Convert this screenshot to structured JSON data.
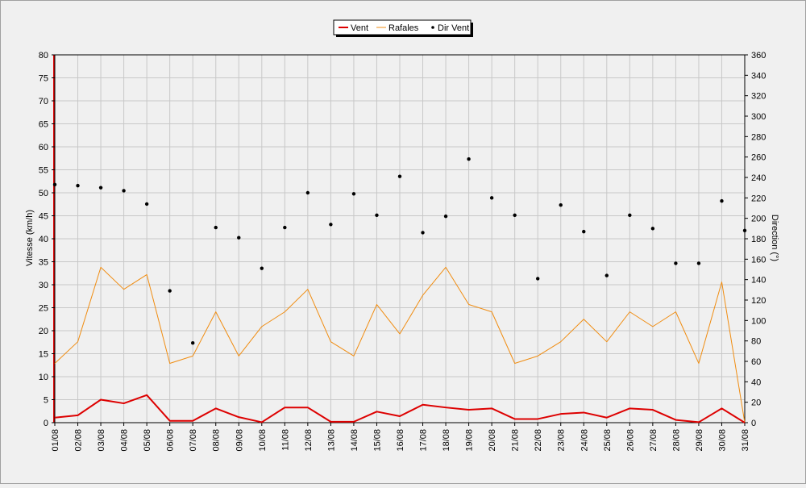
{
  "chart_data": {
    "type": "line",
    "title": "",
    "x": [
      "01/08",
      "02/08",
      "03/08",
      "04/08",
      "05/08",
      "06/08",
      "07/08",
      "08/08",
      "09/08",
      "10/08",
      "11/08",
      "12/08",
      "13/08",
      "14/08",
      "15/08",
      "16/08",
      "17/08",
      "18/08",
      "19/08",
      "20/08",
      "21/08",
      "22/08",
      "23/08",
      "24/08",
      "25/08",
      "26/08",
      "27/08",
      "28/08",
      "29/08",
      "30/08",
      "31/08"
    ],
    "ylabel": "Vitesse (km/h)",
    "y2label": "Direction (°)",
    "ylim": [
      0,
      80
    ],
    "y2lim": [
      0,
      360
    ],
    "yticks": [
      0,
      5,
      10,
      15,
      20,
      25,
      30,
      35,
      40,
      45,
      50,
      55,
      60,
      65,
      70,
      75,
      80
    ],
    "y2ticks": [
      0,
      20,
      40,
      60,
      80,
      100,
      120,
      140,
      160,
      180,
      200,
      220,
      240,
      260,
      280,
      300,
      320,
      340,
      360
    ],
    "grid": true,
    "legend_position": "top-center",
    "series": [
      {
        "name": "Vent",
        "axis": "left",
        "kind": "line",
        "color": "#dd0000",
        "values": [
          1.1,
          1.6,
          5.0,
          4.2,
          6.0,
          0.4,
          0.4,
          3.1,
          1.2,
          0.1,
          3.3,
          3.3,
          0.2,
          0.2,
          2.4,
          1.4,
          3.9,
          3.3,
          2.8,
          3.1,
          0.8,
          0.8,
          1.9,
          2.2,
          1.1,
          3.1,
          2.8,
          0.6,
          0.1,
          3.1,
          0.0
        ]
      },
      {
        "name": "Rafales",
        "axis": "left",
        "kind": "line",
        "color": "#f08c10",
        "values": [
          12.9,
          17.6,
          33.8,
          29.0,
          32.2,
          12.9,
          14.5,
          24.1,
          14.5,
          20.9,
          24.1,
          29.0,
          17.6,
          14.5,
          25.7,
          19.3,
          27.7,
          33.8,
          25.7,
          24.1,
          12.9,
          14.5,
          17.6,
          22.5,
          17.6,
          24.1,
          20.9,
          24.1,
          12.9,
          30.6,
          0.0
        ]
      },
      {
        "name": "Dir Vent",
        "axis": "right",
        "kind": "scatter",
        "color": "#000000",
        "values": [
          233,
          232,
          230,
          227,
          214,
          129,
          78,
          191,
          181,
          151,
          191,
          225,
          194,
          224,
          203,
          241,
          186,
          202,
          258,
          220,
          203,
          141,
          213,
          187,
          144,
          203,
          190,
          156,
          156,
          217,
          188
        ]
      }
    ]
  }
}
